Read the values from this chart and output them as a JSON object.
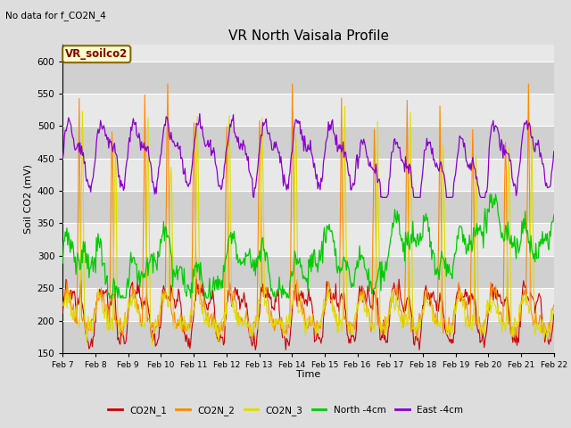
{
  "title": "VR North Vaisala Profile",
  "subtitle": "No data for f_CO2N_4",
  "ylabel": "Soil CO2 (mV)",
  "xlabel": "Time",
  "ylim": [
    150,
    625
  ],
  "yticks": [
    150,
    200,
    250,
    300,
    350,
    400,
    450,
    500,
    550,
    600
  ],
  "date_labels": [
    "Feb 7",
    "Feb 8",
    "Feb 9",
    "Feb 10",
    "Feb 11",
    "Feb 12",
    "Feb 13",
    "Feb 14",
    "Feb 15",
    "Feb 16",
    "Feb 17",
    "Feb 18",
    "Feb 19",
    "Feb 20",
    "Feb 21",
    "Feb 22"
  ],
  "colors": {
    "CO2N_1": "#cc0000",
    "CO2N_2": "#ff8800",
    "CO2N_3": "#dddd00",
    "North_4cm": "#00cc00",
    "East_4cm": "#8800cc"
  },
  "bg_color": "#dddddd",
  "plot_bg_light": "#e8e8e8",
  "plot_bg_dark": "#d0d0d0",
  "legend_box_color": "#ffffcc",
  "legend_box_edge": "#886600",
  "legend_text_color": "#880000"
}
